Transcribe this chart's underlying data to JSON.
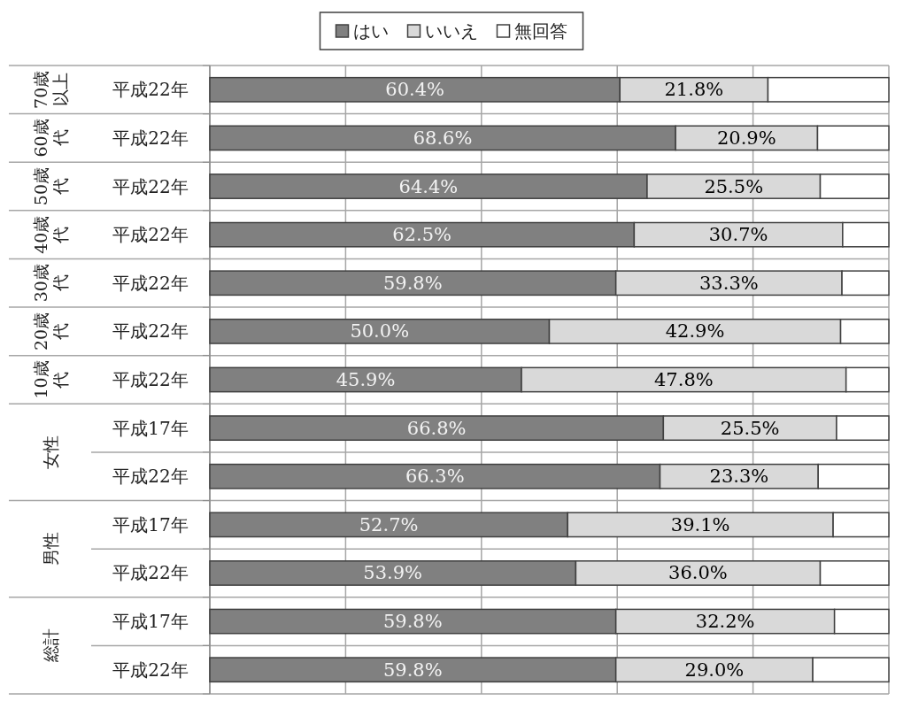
{
  "chart_data": {
    "type": "bar",
    "orientation": "horizontal",
    "stacked": true,
    "categories": [
      "平成22年",
      "平成22年",
      "平成22年",
      "平成22年",
      "平成22年",
      "平成22年",
      "平成22年",
      "平成17年",
      "平成22年",
      "平成17年",
      "平成22年",
      "平成17年",
      "平成22年"
    ],
    "series": [
      {
        "name": "はい",
        "color": "#808080",
        "values": [
          60.4,
          68.6,
          64.4,
          62.5,
          59.8,
          50.0,
          45.9,
          66.8,
          66.3,
          52.7,
          53.9,
          59.8,
          59.8
        ],
        "value_labels": [
          "60.4%",
          "68.6%",
          "64.4%",
          "62.5%",
          "59.8%",
          "50.0%",
          "45.9%",
          "66.8%",
          "66.3%",
          "52.7%",
          "53.9%",
          "59.8%",
          "59.8%"
        ]
      },
      {
        "name": "いいえ",
        "color": "#d9d9d9",
        "values": [
          21.8,
          20.9,
          25.5,
          30.7,
          33.3,
          42.9,
          47.8,
          25.5,
          23.3,
          39.1,
          36.0,
          32.2,
          29.0
        ],
        "value_labels": [
          "21.8%",
          "20.9%",
          "25.5%",
          "30.7%",
          "33.3%",
          "42.9%",
          "47.8%",
          "25.5%",
          "23.3%",
          "39.1%",
          "36.0%",
          "32.2%",
          "29.0%"
        ]
      },
      {
        "name": "無回答",
        "color": "#ffffff",
        "values": [
          17.8,
          10.5,
          10.1,
          6.8,
          6.9,
          7.1,
          6.3,
          7.7,
          10.4,
          8.2,
          10.1,
          8.0,
          11.2
        ]
      }
    ],
    "xlim": [
      0,
      100
    ],
    "xticks": [
      {
        "value": 0,
        "label": null
      },
      {
        "value": 20,
        "label": null
      },
      {
        "value": 40,
        "label": null
      },
      {
        "value": 60,
        "label": null
      },
      {
        "value": 80,
        "label": null
      },
      {
        "value": 100,
        "label": null
      }
    ],
    "tick_labels": "y",
    "grid": true,
    "legend": "top",
    "annotations": [
      "70歳以上",
      "60歳代",
      "50歳代",
      "40歳代",
      "30歳代",
      "20歳代",
      "10歳代",
      "女性",
      "男性",
      "総計"
    ]
  }
}
